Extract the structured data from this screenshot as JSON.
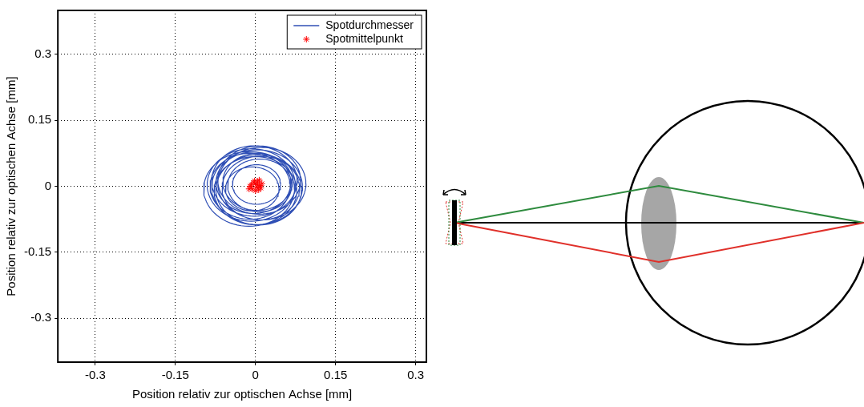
{
  "chart_data": {
    "type": "scatter",
    "xlabel": "Position relativ zur optischen Achse [mm]",
    "ylabel": "Position relativ zur optischen Achse [mm]",
    "xlim": [
      -0.37,
      0.32
    ],
    "ylim": [
      -0.4,
      0.4
    ],
    "xticks": [
      -0.3,
      -0.15,
      0,
      0.15,
      0.3
    ],
    "yticks": [
      -0.3,
      -0.15,
      0,
      0.15,
      0.3
    ],
    "grid": true,
    "legend": "upper right",
    "series": [
      {
        "name": "Spotdurchmesser",
        "color": "#2f4fb5",
        "marker": "none",
        "line_style": "solid",
        "x": [
          0.002,
          -0.006,
          0.008,
          0.004,
          -0.004,
          0.01,
          -0.01,
          0.0,
          0.006,
          -0.002,
          0.012,
          -0.008,
          0.003,
          -0.012,
          0.007
        ],
        "y": [
          0.004,
          -0.006,
          0.002,
          0.01,
          0.008,
          -0.004,
          0.0,
          -0.01,
          -0.008,
          0.012,
          0.006,
          0.003,
          -0.002,
          -0.006,
          0.014
        ],
        "diameters": [
          0.09,
          0.1,
          0.12,
          0.13,
          0.14,
          0.145,
          0.15,
          0.155,
          0.16,
          0.16,
          0.165,
          0.165,
          0.17,
          0.17,
          0.155
        ]
      },
      {
        "name": "Spotmittelpunkt",
        "color": "#ff0000",
        "marker": "star",
        "x": [
          0.002,
          -0.006,
          0.008,
          0.004,
          -0.004,
          0.01,
          -0.01,
          0.0,
          0.006,
          -0.002,
          0.012,
          -0.008,
          0.003,
          -0.012,
          0.007
        ],
        "y": [
          0.004,
          -0.006,
          0.002,
          0.01,
          0.008,
          -0.004,
          0.0,
          -0.01,
          -0.008,
          0.012,
          0.006,
          0.003,
          -0.002,
          -0.006,
          0.014
        ]
      }
    ]
  }
}
